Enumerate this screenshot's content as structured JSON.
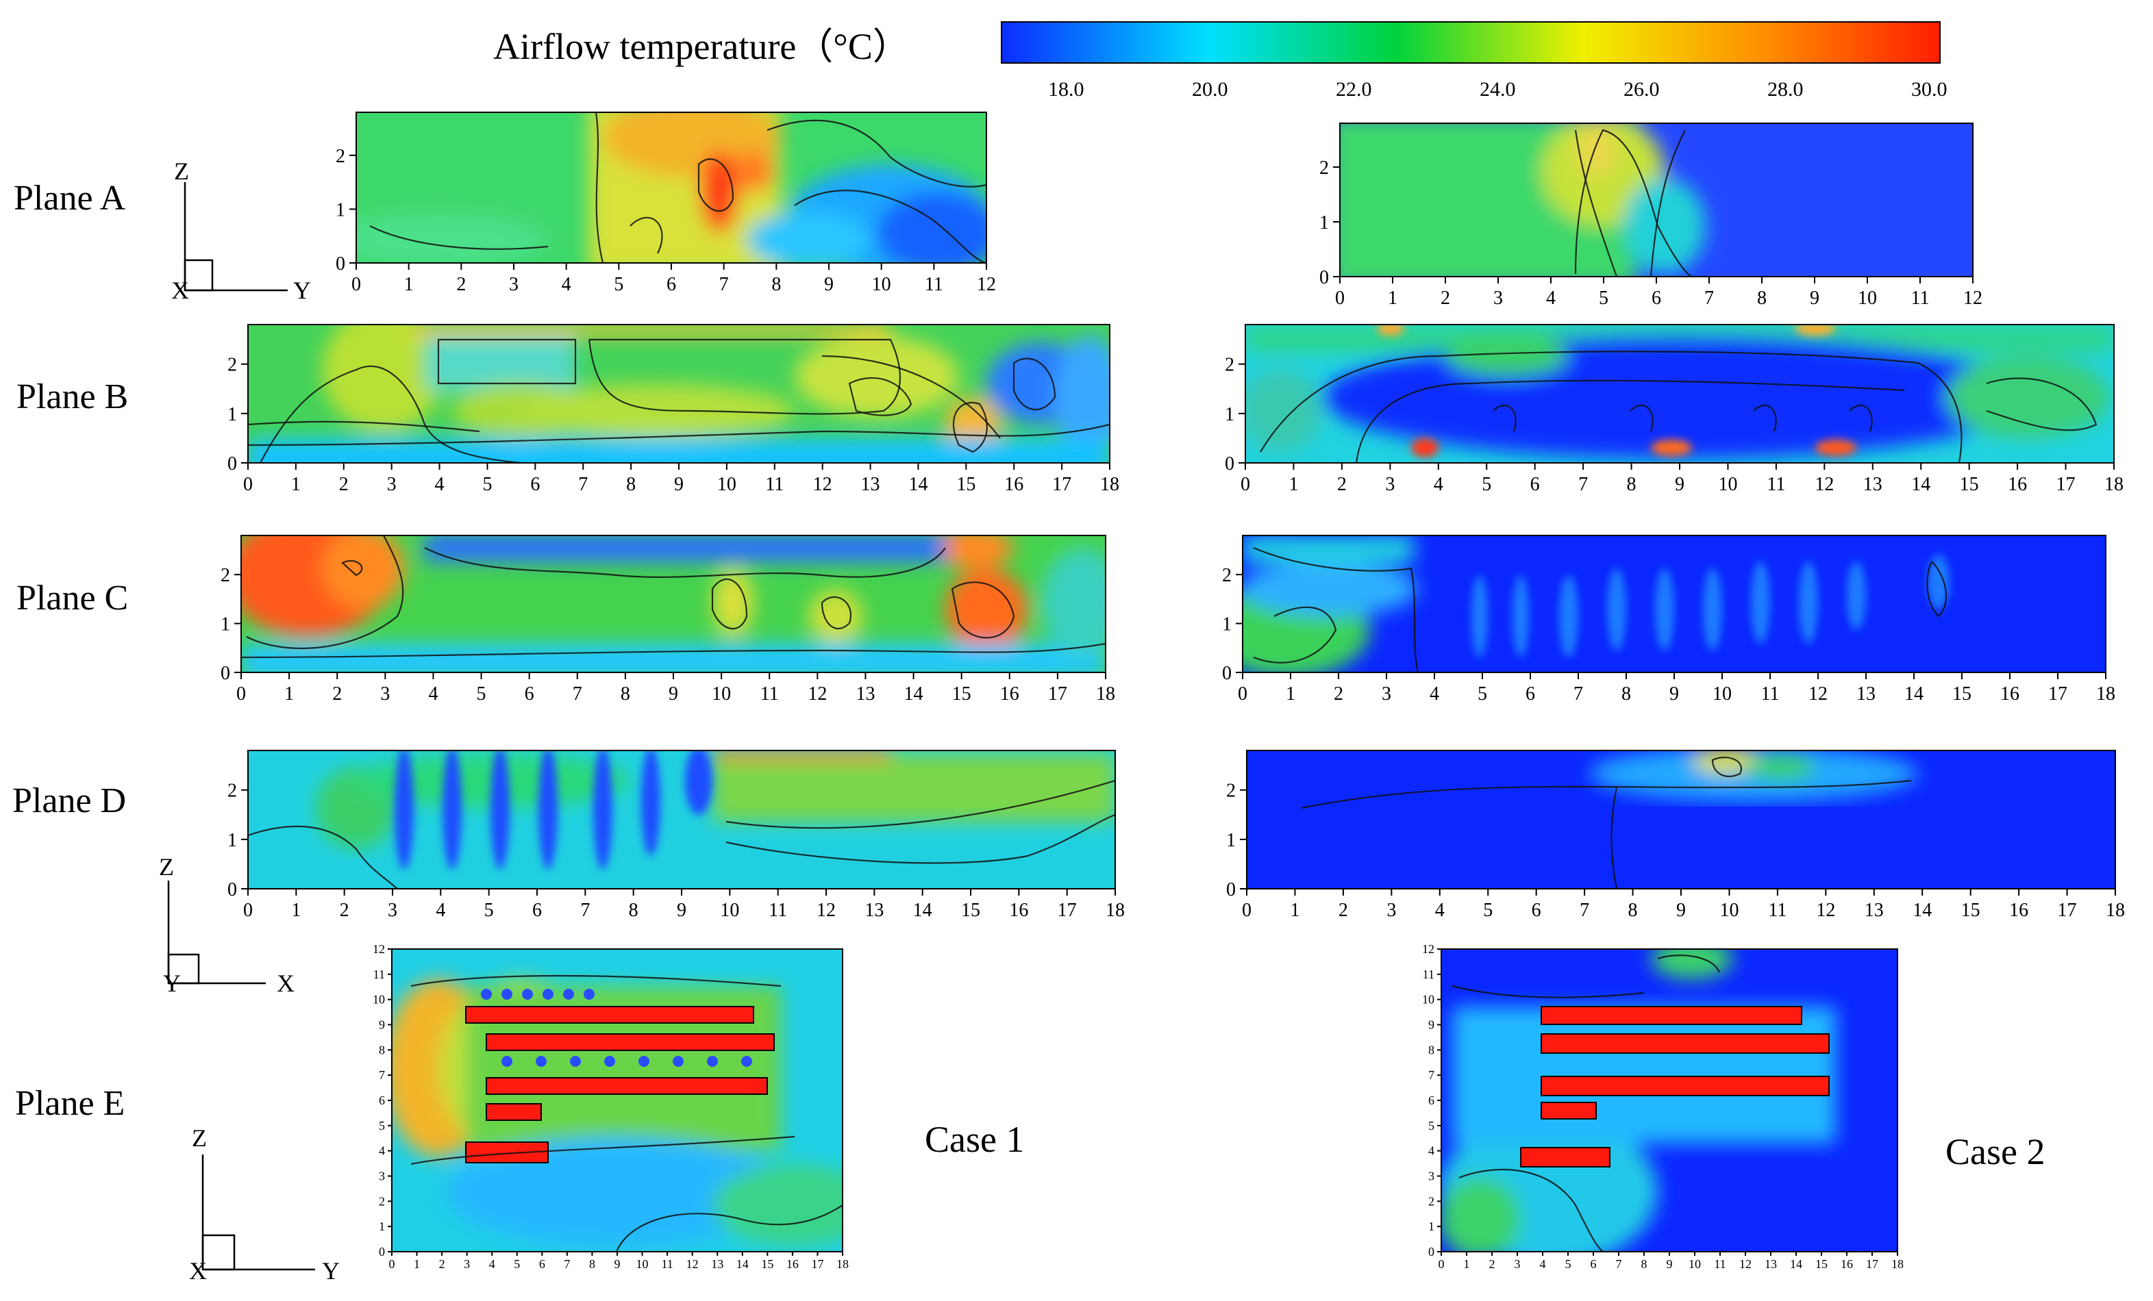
{
  "colorbar": {
    "title": "Airflow temperature（°C）",
    "ticks": [
      "18.0",
      "20.0",
      "22.0",
      "24.0",
      "26.0",
      "28.0",
      "30.0"
    ],
    "range": [
      17,
      30
    ],
    "colors": [
      "#0b2cff",
      "#00e0ff",
      "#00d23c",
      "#f0f000",
      "#ff8a00",
      "#ff1e00"
    ]
  },
  "planes": [
    {
      "label": "Plane A"
    },
    {
      "label": "Plane B"
    },
    {
      "label": "Plane C"
    },
    {
      "label": "Plane D"
    },
    {
      "label": "Plane E"
    }
  ],
  "cases": [
    {
      "label": "Case 1"
    },
    {
      "label": "Case 2"
    }
  ],
  "axis_letters": {
    "z": "Z",
    "y": "Y",
    "x": "X"
  },
  "y_ticks": [
    "0",
    "1",
    "2"
  ],
  "long_x_ticks": [
    "0",
    "1",
    "2",
    "3",
    "4",
    "5",
    "6",
    "7",
    "8",
    "9",
    "10",
    "11",
    "12",
    "13",
    "14",
    "15",
    "16",
    "17",
    "18"
  ],
  "short_x_ticks": [
    "0",
    "1",
    "2",
    "3",
    "4",
    "5",
    "6",
    "7",
    "8",
    "9",
    "10",
    "11",
    "12"
  ],
  "plane_e_y_ticks": [
    "0",
    "1",
    "2",
    "3",
    "4",
    "5",
    "6",
    "7",
    "8",
    "9",
    "10",
    "11",
    "12"
  ],
  "plane_e_x_ticks": [
    "0",
    "1",
    "2",
    "3",
    "4",
    "5",
    "6",
    "7",
    "8",
    "9",
    "10",
    "11",
    "12",
    "13",
    "14",
    "15",
    "16",
    "17",
    "18"
  ]
}
